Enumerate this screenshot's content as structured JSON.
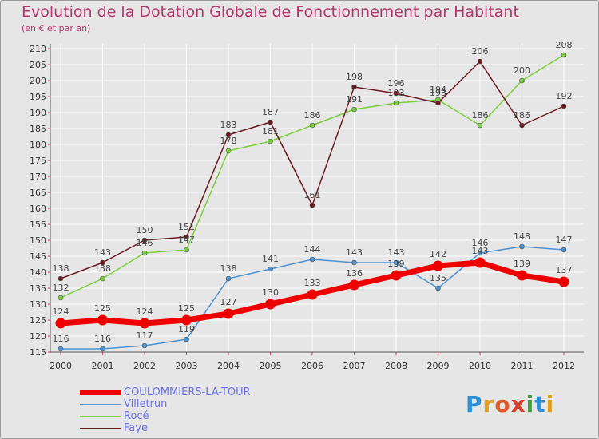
{
  "header": {
    "title": "Evolution de la Dotation Globale de Fonctionnement par Habitant",
    "subtitle": "(en € et par an)"
  },
  "colors": {
    "title": "#b0386c",
    "legend_text": "#6a72e8",
    "axis_text": "#333333",
    "grid": "#ffffff",
    "background": "#e6e6e6"
  },
  "logo": {
    "text": "Proxiti",
    "letter_colors": [
      "#2f8fd6",
      "#e0a020",
      "#e05a2a",
      "#d93f2b",
      "#3aa63a",
      "#2f8fd6",
      "#e0a020"
    ]
  },
  "chart_data": {
    "type": "line",
    "title": "Evolution de la Dotation Globale de Fonctionnement par Habitant",
    "subtitle": "(en € et par an)",
    "xlabel": "",
    "ylabel": "",
    "ylim": [
      115,
      210
    ],
    "ytick_step": 5,
    "grid": true,
    "legend_position": "bottom-left",
    "categories": [
      "2000",
      "2001",
      "2002",
      "2003",
      "2004",
      "2005",
      "2006",
      "2007",
      "2008",
      "2009",
      "2010",
      "2011",
      "2012"
    ],
    "series": [
      {
        "name": "COULOMMIERS-LA-TOUR",
        "color": "#ee0000",
        "values": [
          124,
          125,
          124,
          125,
          127,
          130,
          133,
          136,
          139,
          142,
          143,
          139,
          137
        ]
      },
      {
        "name": "Villetrun",
        "color": "#4d93d0",
        "values": [
          116,
          116,
          117,
          119,
          138,
          141,
          144,
          143,
          143,
          135,
          146,
          148,
          147
        ]
      },
      {
        "name": "Rocé",
        "color": "#7ccf3c",
        "values": [
          132,
          138,
          146,
          147,
          178,
          181,
          186,
          191,
          193,
          194,
          186,
          200,
          208
        ]
      },
      {
        "name": "Faye",
        "color": "#6b1a1f",
        "values": [
          138,
          143,
          150,
          151,
          183,
          187,
          161,
          198,
          196,
          193,
          206,
          186,
          192
        ]
      }
    ]
  }
}
